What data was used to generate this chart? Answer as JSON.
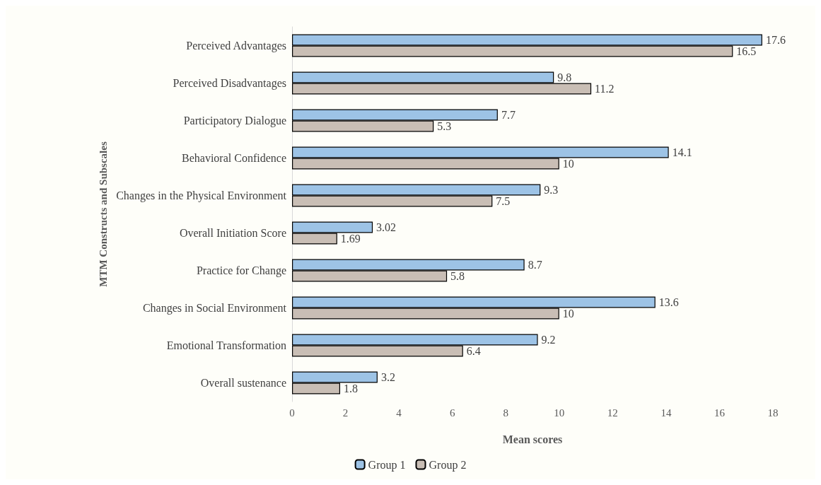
{
  "chart_data": {
    "type": "bar",
    "orientation": "horizontal",
    "xlabel": "Mean scores",
    "ylabel": "MTM Constructs and Subscales",
    "categories": [
      "Perceived Advantages",
      "Perceived Disadvantages",
      "Participatory Dialogue",
      "Behavioral Confidence",
      "Changes in the Physical Environment",
      "Overall Initiation Score",
      "Practice for Change",
      "Changes in Social Environment",
      "Emotional Transformation",
      "Overall sustenance"
    ],
    "series": [
      {
        "name": "Group 1",
        "color": "#9dc3e6",
        "values": [
          17.6,
          9.8,
          7.7,
          14.1,
          9.3,
          3.02,
          8.7,
          13.6,
          9.2,
          3.2
        ]
      },
      {
        "name": "Group 2",
        "color": "#c9beb5",
        "values": [
          16.5,
          11.2,
          5.3,
          10,
          7.5,
          1.69,
          5.8,
          10,
          6.4,
          1.8
        ]
      }
    ],
    "xlim": [
      0,
      18
    ],
    "xticks": [
      0,
      2,
      4,
      6,
      8,
      10,
      12,
      14,
      16,
      18
    ],
    "grid": false,
    "legend": "bottom",
    "data_labels": true
  }
}
